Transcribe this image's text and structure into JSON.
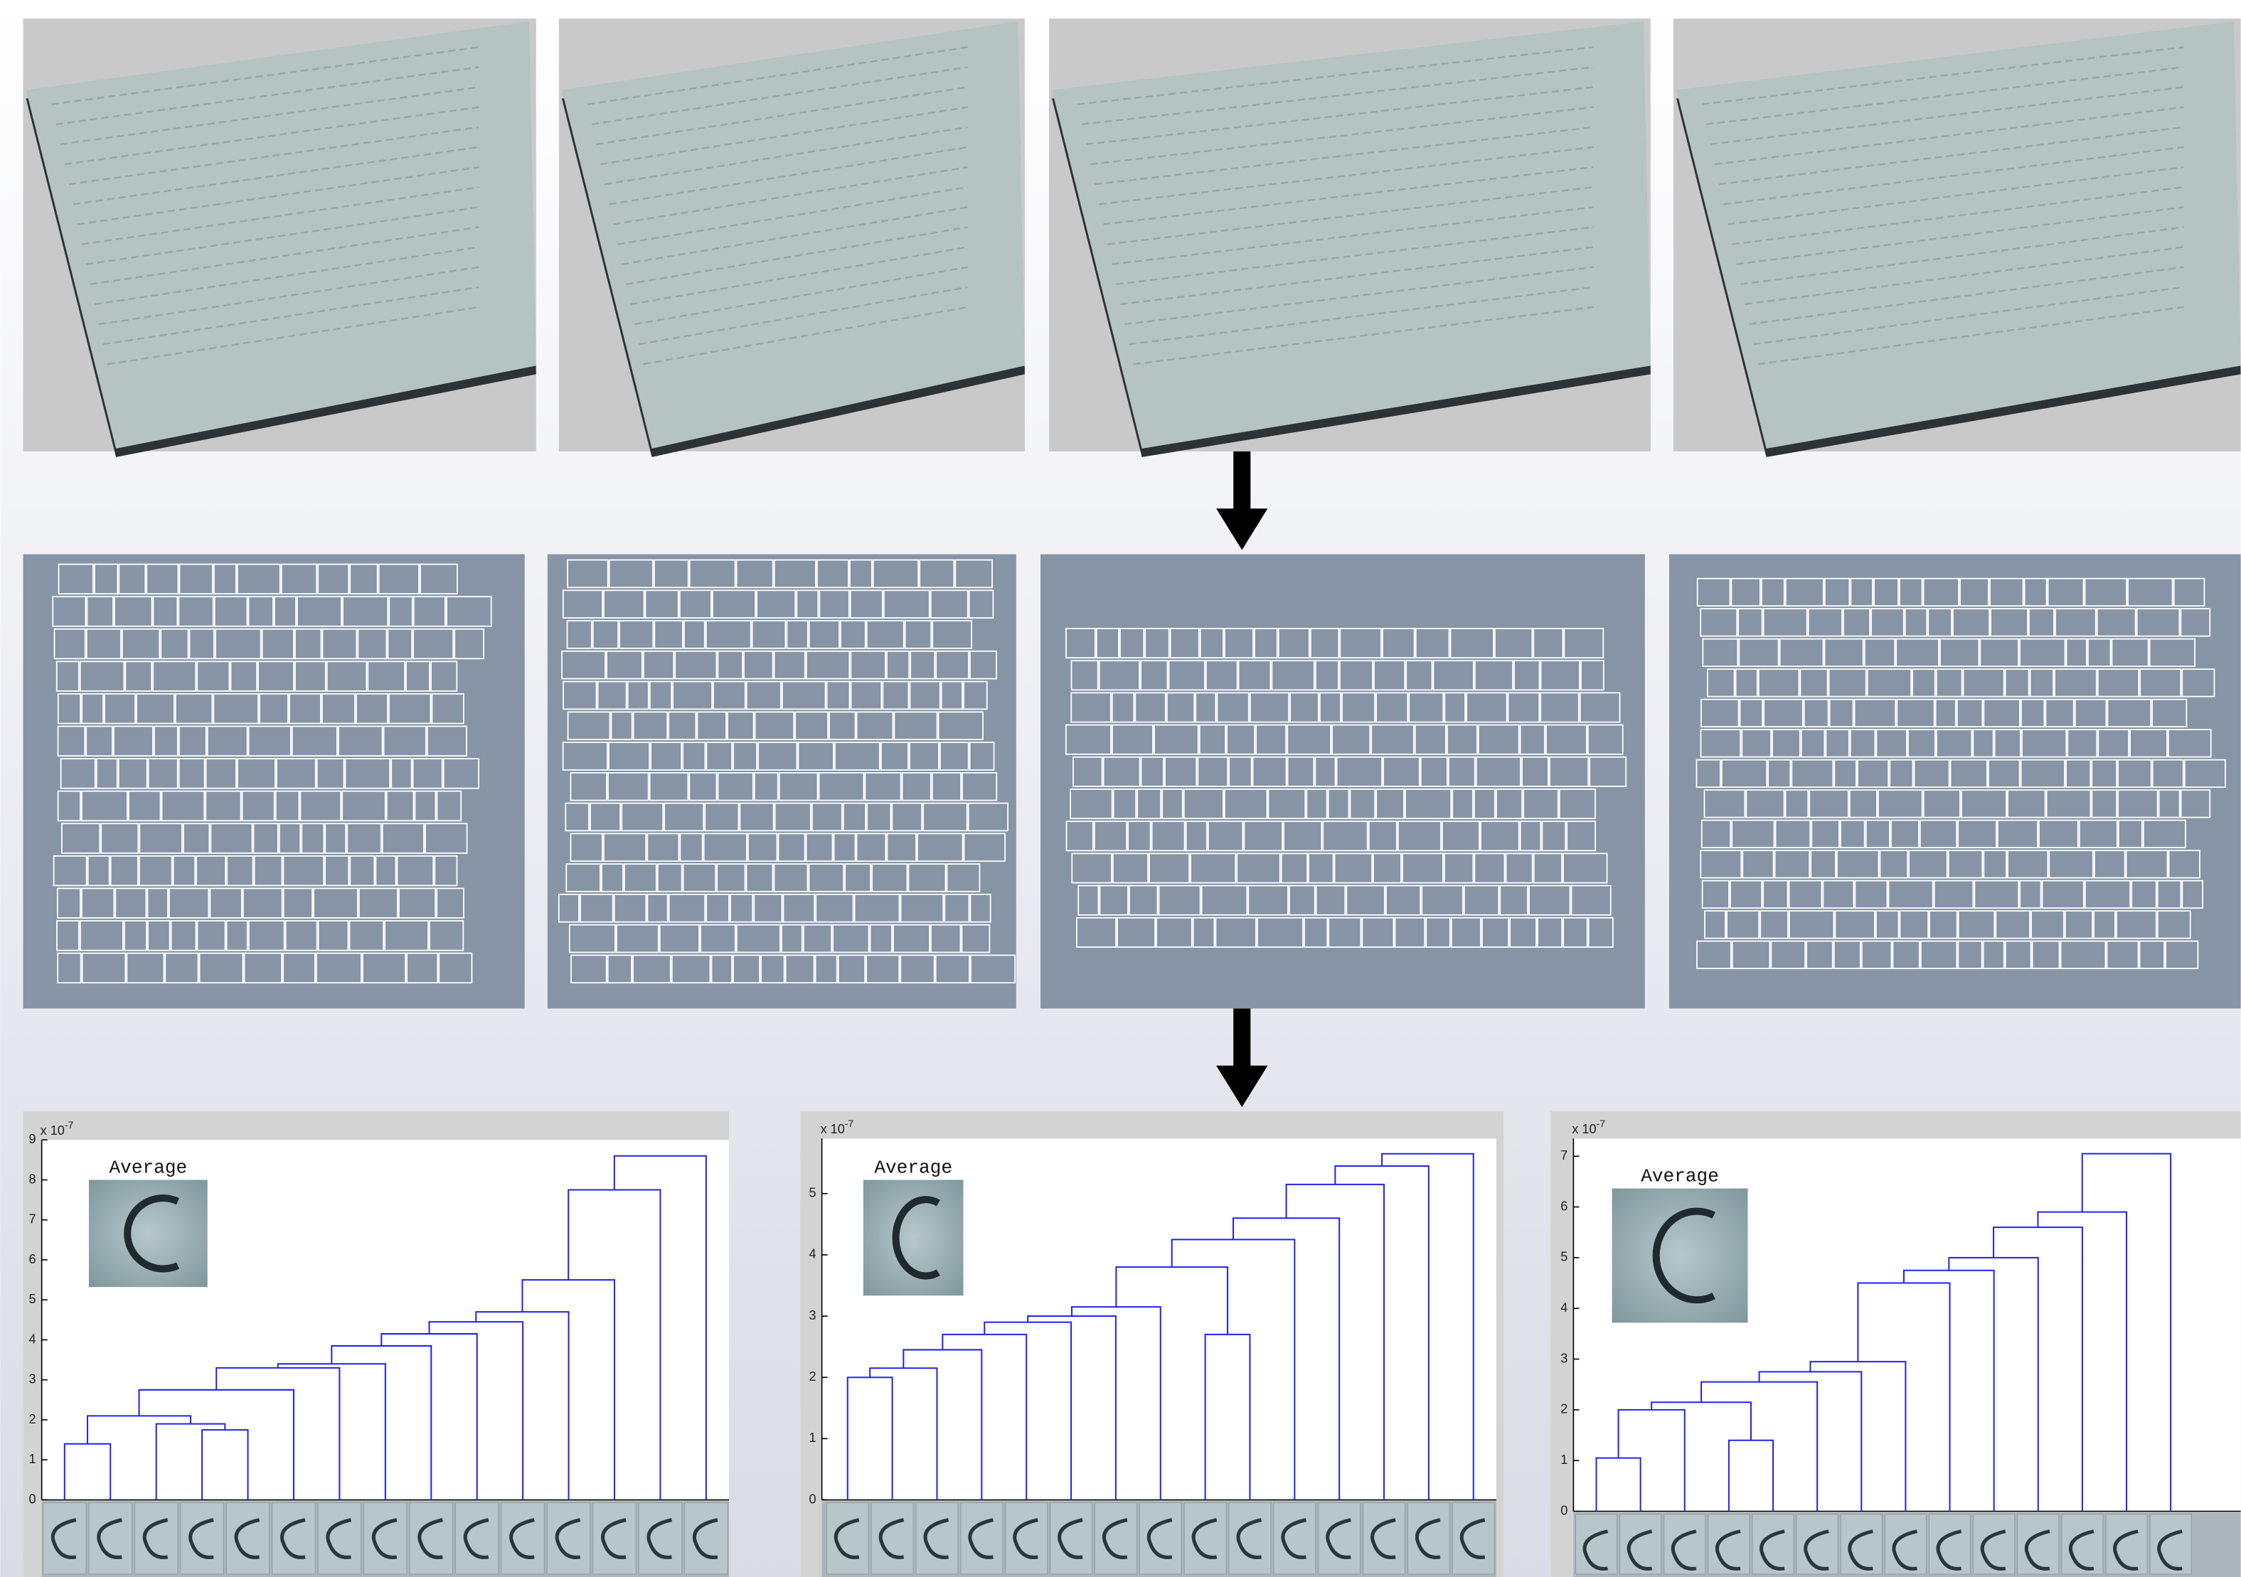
{
  "panels": [
    {
      "scale_base": "x 10",
      "scale_exponent": "-7",
      "inset_label": "Average",
      "ylim": [
        0,
        9
      ],
      "yticks": [
        0,
        1,
        2,
        3,
        4,
        5,
        6,
        7,
        8,
        9
      ],
      "merges": [
        [
          0,
          1,
          1.4
        ],
        [
          3,
          4,
          1.75
        ],
        [
          2,
          16,
          1.9
        ],
        [
          15,
          17,
          2.1
        ],
        [
          18,
          5,
          2.75
        ],
        [
          19,
          6,
          3.3
        ],
        [
          20,
          7,
          3.4
        ],
        [
          21,
          8,
          3.85
        ],
        [
          22,
          9,
          4.15
        ],
        [
          23,
          10,
          4.45
        ],
        [
          24,
          11,
          4.7
        ],
        [
          25,
          12,
          5.5
        ],
        [
          26,
          13,
          7.75
        ],
        [
          27,
          14,
          8.6
        ]
      ]
    },
    {
      "scale_base": "x 10",
      "scale_exponent": "-7",
      "inset_label": "Average",
      "ylim": [
        0,
        5.9
      ],
      "yticks": [
        0,
        1,
        2,
        3,
        4,
        5
      ],
      "merges": [
        [
          0,
          1,
          2.0
        ],
        [
          15,
          2,
          2.15
        ],
        [
          16,
          3,
          2.45
        ],
        [
          17,
          4,
          2.7
        ],
        [
          18,
          5,
          2.9
        ],
        [
          19,
          6,
          3.0
        ],
        [
          20,
          7,
          3.15
        ],
        [
          8,
          9,
          2.7
        ],
        [
          21,
          22,
          3.8
        ],
        [
          23,
          10,
          4.25
        ],
        [
          24,
          11,
          4.6
        ],
        [
          25,
          12,
          5.15
        ],
        [
          26,
          13,
          5.45
        ],
        [
          27,
          14,
          5.65
        ]
      ]
    },
    {
      "scale_base": "x 10",
      "scale_exponent": "-7",
      "inset_label": "Average",
      "ylim": [
        0,
        7.35
      ],
      "yticks": [
        0,
        1,
        2,
        3,
        4,
        5,
        6,
        7
      ],
      "merges": [
        [
          0,
          1,
          1.05
        ],
        [
          14,
          2,
          2.0
        ],
        [
          3,
          4,
          1.4
        ],
        [
          15,
          16,
          2.15
        ],
        [
          17,
          5,
          2.55
        ],
        [
          18,
          6,
          2.75
        ],
        [
          19,
          7,
          2.95
        ],
        [
          20,
          8,
          4.5
        ],
        [
          21,
          9,
          4.75
        ],
        [
          22,
          10,
          5.0
        ],
        [
          23,
          11,
          5.6
        ],
        [
          24,
          12,
          5.9
        ],
        [
          25,
          13,
          7.05
        ]
      ]
    }
  ]
}
